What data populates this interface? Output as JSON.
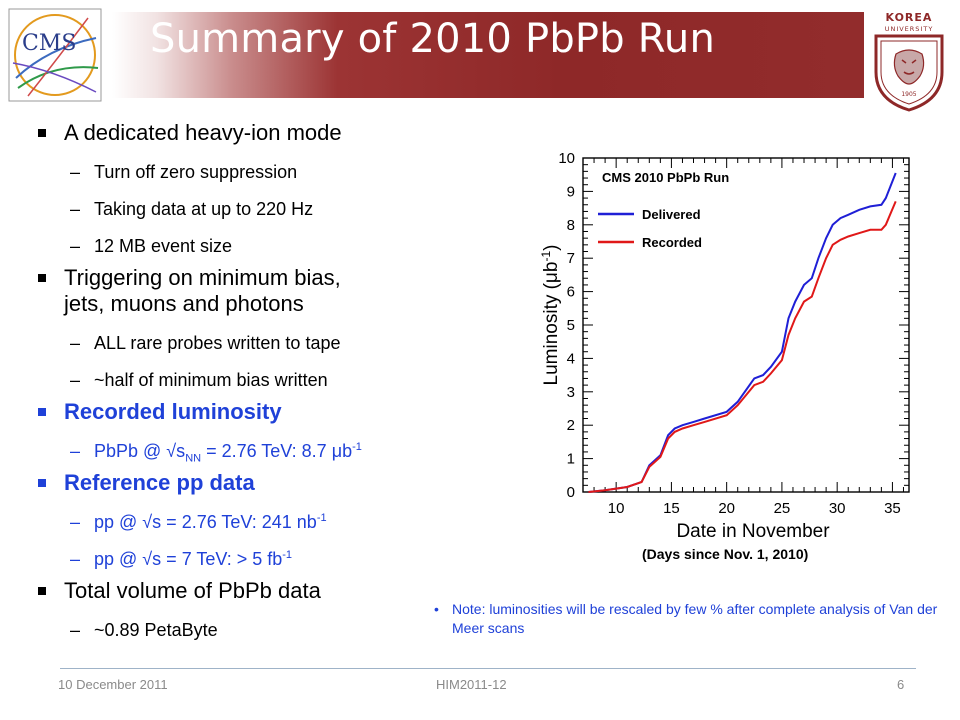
{
  "title": "Summary of 2010 PbPb Run",
  "logos": {
    "cms": "CMS",
    "korea_top": "KOREA",
    "korea_sub": "UNIVERSITY",
    "korea_year": "1905"
  },
  "bullets": [
    {
      "text": "A dedicated heavy-ion mode",
      "subs": [
        "Turn off zero suppression",
        "Taking data at up to 220 Hz",
        "12 MB event size"
      ]
    },
    {
      "text": "Triggering on minimum bias,",
      "text2": "jets, muons and photons",
      "subs": [
        "ALL rare probes written to tape",
        "~half of minimum bias written"
      ]
    },
    {
      "text": "Recorded luminosity",
      "sub": {
        "pre": "PbPb @ √s",
        "nn": "NN",
        "mid": " = 2.76 TeV: 8.7 ",
        "mu": "μ",
        "unit": "b",
        "exp": "-1"
      }
    },
    {
      "text": "Reference pp data",
      "sub1": {
        "pre": "pp @ √s = 2.76 TeV: 241 nb",
        "exp": "-1"
      },
      "sub2": {
        "pre": "pp @ √s = 7 TeV: > 5 fb",
        "exp": "-1"
      }
    },
    {
      "text": "Total volume of PbPb data",
      "subs": [
        "~0.89 PetaByte"
      ]
    }
  ],
  "chart_data": {
    "type": "line",
    "title": "CMS 2010 PbPb Run",
    "xlabel": "Date in November",
    "ylabel_main": "Luminosity (",
    "ylabel_mu": "μ",
    "ylabel_unit": "b",
    "ylabel_exp": "-1",
    "ylabel_close": ")",
    "xlim": [
      7,
      36.5
    ],
    "ylim": [
      0,
      10
    ],
    "xticks": [
      10,
      15,
      20,
      25,
      30,
      35
    ],
    "yticks": [
      0,
      1,
      2,
      3,
      4,
      5,
      6,
      7,
      8,
      9,
      10
    ],
    "legend_position": "top-left",
    "series": [
      {
        "name": "Delivered",
        "color": "#1f1fd6",
        "x": [
          7.5,
          9,
          11,
          12.3,
          13,
          14,
          14.7,
          15.3,
          16,
          17,
          18,
          20,
          21,
          22.5,
          23.3,
          24,
          25,
          25.6,
          26.2,
          27,
          27.7,
          28.3,
          29,
          29.6,
          30.3,
          31,
          32,
          33,
          34,
          34.4,
          35.3
        ],
        "y": [
          0,
          0.05,
          0.15,
          0.3,
          0.8,
          1.1,
          1.7,
          1.9,
          2.0,
          2.1,
          2.2,
          2.4,
          2.7,
          3.4,
          3.5,
          3.75,
          4.2,
          5.2,
          5.7,
          6.2,
          6.4,
          7.0,
          7.6,
          8.0,
          8.2,
          8.3,
          8.45,
          8.55,
          8.6,
          8.8,
          9.55
        ]
      },
      {
        "name": "Recorded",
        "color": "#e01818",
        "x": [
          7.5,
          9,
          11,
          12.3,
          13,
          14,
          14.7,
          15.3,
          16,
          17,
          18,
          20,
          21,
          22.5,
          23.3,
          24,
          25,
          25.6,
          26.2,
          27,
          27.7,
          28.3,
          29,
          29.6,
          30.3,
          31,
          32,
          33,
          34,
          34.4,
          35.3
        ],
        "y": [
          0,
          0.05,
          0.15,
          0.3,
          0.75,
          1.05,
          1.6,
          1.8,
          1.9,
          2.0,
          2.1,
          2.3,
          2.6,
          3.2,
          3.3,
          3.55,
          3.95,
          4.7,
          5.2,
          5.7,
          5.85,
          6.4,
          7.0,
          7.4,
          7.55,
          7.65,
          7.75,
          7.85,
          7.85,
          8.0,
          8.7
        ]
      }
    ]
  },
  "days_note": "(Days since Nov. 1, 2010)",
  "note": "Note: luminosities will be rescaled by few % after complete analysis of Van der Meer scans",
  "footer": {
    "date": "10 December 2011",
    "conference": "HIM2011-12",
    "page": "6"
  }
}
